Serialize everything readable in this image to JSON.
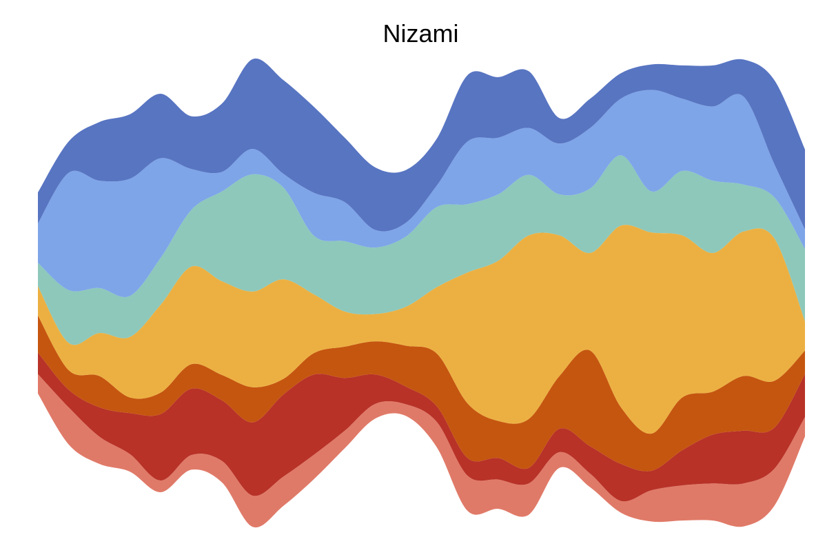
{
  "chart_data": {
    "type": "area",
    "subtype": "streamgraph",
    "title": "Nizami",
    "xlabel": "",
    "ylabel": "",
    "axes_visible": false,
    "grid": false,
    "legend": "none",
    "x": [
      0,
      1,
      2,
      3,
      4,
      5,
      6,
      7,
      8,
      9,
      10,
      11,
      12,
      13,
      14,
      15,
      16,
      17,
      18,
      19,
      20,
      21,
      22,
      23,
      24,
      25
    ],
    "ylim": [
      -240,
      240
    ],
    "series": [
      {
        "color": "#e07a68",
        "values": [
          20,
          38,
          28,
          18,
          12,
          15,
          22,
          32,
          30,
          25,
          18,
          15,
          12,
          26,
          36,
          30,
          32,
          16,
          14,
          12,
          32,
          36,
          38,
          44,
          38,
          20
        ]
      },
      {
        "color": "#b83228",
        "values": [
          22,
          18,
          30,
          42,
          68,
          68,
          62,
          75,
          84,
          82,
          54,
          30,
          18,
          16,
          18,
          22,
          16,
          24,
          28,
          38,
          20,
          36,
          50,
          54,
          42,
          44
        ]
      },
      {
        "color": "#c5560f",
        "values": [
          38,
          20,
          32,
          16,
          22,
          25,
          26,
          36,
          16,
          22,
          32,
          34,
          42,
          54,
          56,
          38,
          50,
          54,
          98,
          58,
          38,
          54,
          44,
          56,
          48,
          24
        ]
      },
      {
        "color": "#ecb042",
        "values": [
          30,
          28,
          44,
          62,
          90,
          100,
          96,
          98,
          102,
          60,
          36,
          28,
          40,
          68,
          134,
          164,
          188,
          144,
          100,
          186,
          206,
          166,
          142,
          148,
          146,
          30
        ]
      },
      {
        "color": "#8dc8bb",
        "values": [
          24,
          54,
          46,
          42,
          48,
          58,
          92,
          120,
          94,
          60,
          72,
          68,
          72,
          82,
          70,
          68,
          62,
          42,
          66,
          72,
          42,
          66,
          74,
          48,
          42,
          74
        ]
      },
      {
        "color": "#7ea5e8",
        "values": [
          40,
          120,
          110,
          120,
          102,
          42,
          20,
          26,
          14,
          44,
          40,
          18,
          14,
          22,
          64,
          58,
          48,
          52,
          62,
          58,
          104,
          74,
          76,
          90,
          34,
          20
        ]
      },
      {
        "color": "#5875c2",
        "values": [
          32,
          32,
          60,
          66,
          66,
          54,
          70,
          92,
          96,
          88,
          66,
          64,
          54,
          48,
          68,
          62,
          58,
          26,
          30,
          26,
          26,
          34,
          42,
          38,
          86,
          82
        ]
      }
    ]
  }
}
